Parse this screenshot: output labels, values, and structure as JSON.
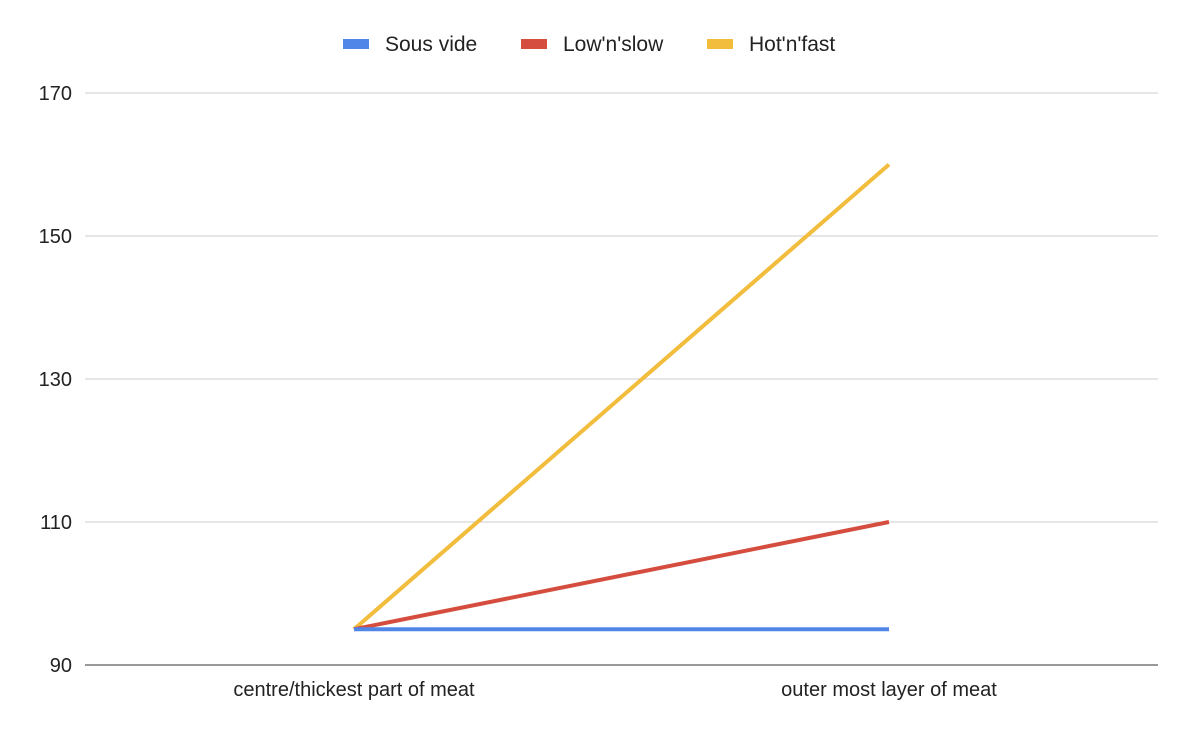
{
  "chart_data": {
    "type": "line",
    "title": "",
    "xlabel": "",
    "ylabel": "",
    "categories": [
      "centre/thickest part of meat",
      "outer most layer of meat"
    ],
    "ylim": [
      90,
      170
    ],
    "yticks": [
      90,
      110,
      130,
      150,
      170
    ],
    "grid": true,
    "legend_position": "top",
    "series": [
      {
        "name": "Sous vide",
        "color": "#4f86e8",
        "values": [
          95,
          95
        ]
      },
      {
        "name": "Low'n'slow",
        "color": "#d54d3f",
        "values": [
          95,
          110
        ]
      },
      {
        "name": "Hot'n'fast",
        "color": "#f2bc3c",
        "values": [
          95,
          160
        ]
      }
    ]
  }
}
